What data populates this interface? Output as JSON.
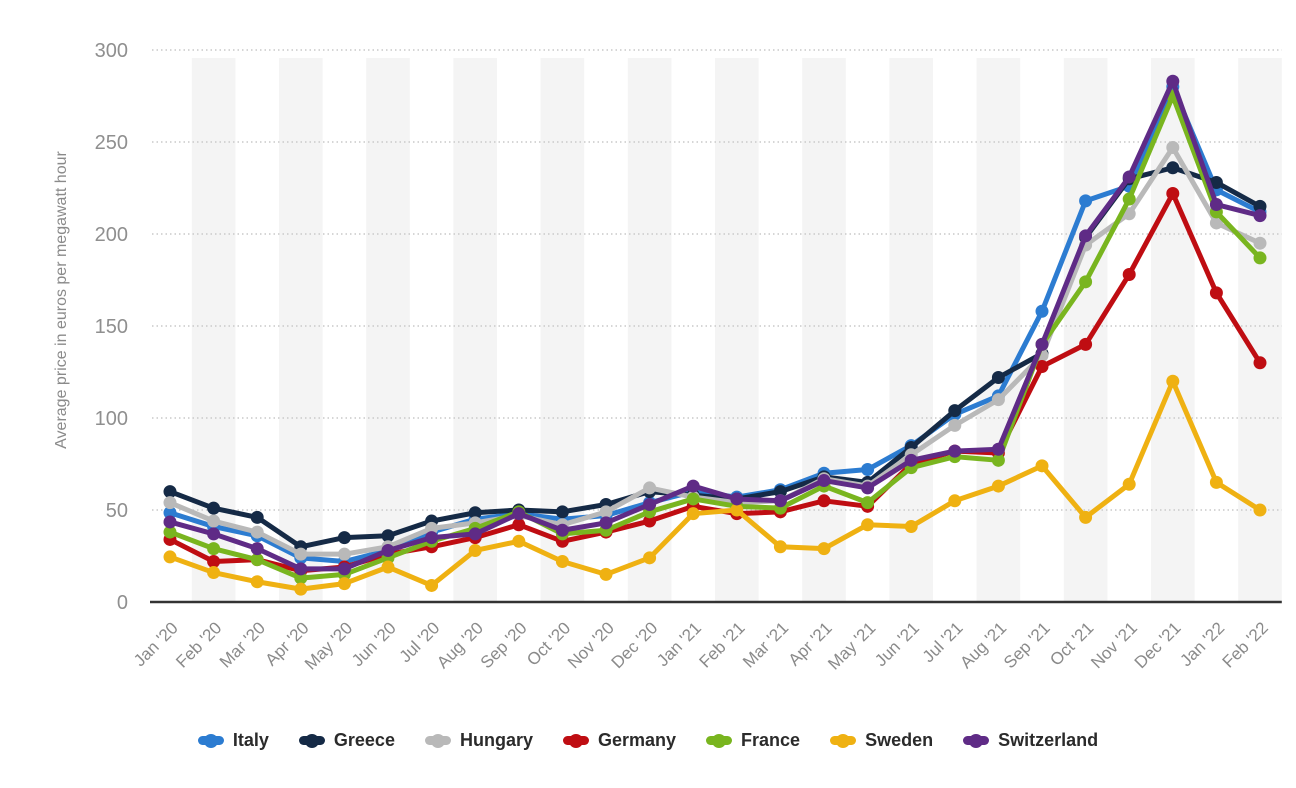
{
  "chart_data": {
    "type": "line",
    "title": "",
    "xlabel": "",
    "ylabel": "Average price in euros per megawatt hour",
    "ylim": [
      0,
      300
    ],
    "y_ticks": [
      300,
      250,
      200,
      150,
      100,
      50,
      0
    ],
    "grid": "horizontal-dotted",
    "legend_position": "bottom",
    "background_stripes": "alternating vertical light gray bands, one per month",
    "categories": [
      "Jan '20",
      "Feb '20",
      "Mar '20",
      "Apr '20",
      "May '20",
      "Jun '20",
      "Jul '20",
      "Aug '20",
      "Sep '20",
      "Oct '20",
      "Nov '20",
      "Dec '20",
      "Jan '21",
      "Feb '21",
      "Mar '21",
      "Apr '21",
      "May '21",
      "Jun '21",
      "Jul '21",
      "Aug '21",
      "Sep '21",
      "Oct '21",
      "Nov '21",
      "Dec '21",
      "Jan '22",
      "Feb '22"
    ],
    "series": [
      {
        "name": "Italy",
        "color": "#2c7cd1",
        "values": [
          48.5,
          41,
          36,
          24,
          22,
          28,
          38,
          45,
          48,
          45,
          47,
          54,
          60,
          57,
          61,
          70,
          72,
          85,
          102,
          112,
          158,
          218,
          226,
          280,
          224,
          212
        ]
      },
      {
        "name": "Greece",
        "color": "#152a46",
        "values": [
          60,
          51,
          46,
          30,
          35,
          36,
          44,
          48.5,
          50,
          49,
          53,
          60,
          58,
          56,
          60,
          68,
          65,
          84,
          104,
          122,
          135,
          198,
          230,
          236,
          228,
          215
        ]
      },
      {
        "name": "Hungary",
        "color": "#b9b9b9",
        "values": [
          54,
          44,
          38,
          26,
          26,
          30,
          40,
          43,
          47,
          42,
          49,
          62,
          57,
          54,
          55,
          67,
          63,
          80,
          96,
          110,
          134,
          194,
          211,
          247,
          206,
          195
        ]
      },
      {
        "name": "Germany",
        "color": "#bf0d12",
        "values": [
          34,
          22,
          23,
          17,
          19,
          26,
          30,
          35,
          42,
          33,
          38,
          44,
          52,
          48,
          49,
          55,
          52,
          75,
          82,
          81,
          128,
          140,
          178,
          222,
          168,
          130
        ]
      },
      {
        "name": "France",
        "color": "#79b51f",
        "values": [
          38,
          29,
          23,
          13,
          15,
          24,
          33,
          40,
          49,
          37,
          39,
          49,
          56,
          52,
          51,
          63,
          54,
          73,
          79,
          77,
          140,
          174,
          219,
          275,
          212,
          187
        ]
      },
      {
        "name": "Sweden",
        "color": "#efb112",
        "values": [
          24.5,
          16,
          11,
          7,
          10,
          19,
          9,
          28,
          33,
          22,
          15,
          24,
          48,
          50,
          30,
          29,
          42,
          41,
          55,
          63,
          74,
          46,
          64,
          120,
          65,
          50
        ]
      },
      {
        "name": "Switzerland",
        "color": "#5f2b86",
        "values": [
          43.5,
          37,
          29,
          18,
          18,
          28,
          35,
          37,
          48,
          39,
          43,
          53,
          63,
          56,
          55,
          66,
          62,
          77,
          82,
          83,
          140,
          199,
          231,
          283,
          216,
          210
        ]
      }
    ]
  },
  "axes": {
    "y_title": "Average price in euros per megawatt hour"
  },
  "colors": {
    "gridline": "#c9c9c9",
    "axis_line": "#333333",
    "stripe": "#f4f4f4",
    "tick_text": "#8f8f8f",
    "legend_text": "#2b2b2b"
  }
}
